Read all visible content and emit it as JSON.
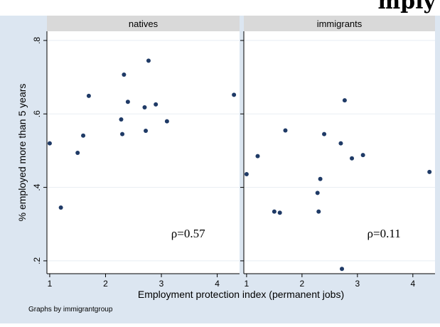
{
  "chart_data": {
    "type": "scatter",
    "title_fragment": "mply",
    "ylabel": "% employed more than 5 years",
    "xlabel": "Employment protection index (permanent jobs)",
    "note": "Graphs by immigrantgroup",
    "xlim": [
      0.95,
      4.4
    ],
    "ylim": [
      0.165,
      0.825
    ],
    "x_ticks": [
      1,
      2,
      3,
      4
    ],
    "y_ticks": [
      0.2,
      0.4,
      0.6,
      0.8
    ],
    "y_tick_labels": [
      ".2",
      ".4",
      ".6",
      ".8"
    ],
    "grid": true,
    "colors": {
      "background": "#dce6f1",
      "plot": "#ffffff",
      "panel_header": "#d9d9d9",
      "marker": "#1f3a66",
      "grid": "#e8edf3"
    },
    "panels": [
      {
        "name": "natives",
        "annotation": "ρ=0.57",
        "points": [
          {
            "x": 1.0,
            "y": 0.52
          },
          {
            "x": 1.2,
            "y": 0.345
          },
          {
            "x": 1.5,
            "y": 0.494
          },
          {
            "x": 1.6,
            "y": 0.541
          },
          {
            "x": 1.7,
            "y": 0.649
          },
          {
            "x": 2.28,
            "y": 0.585
          },
          {
            "x": 2.3,
            "y": 0.545
          },
          {
            "x": 2.33,
            "y": 0.707
          },
          {
            "x": 2.4,
            "y": 0.633
          },
          {
            "x": 2.7,
            "y": 0.618
          },
          {
            "x": 2.72,
            "y": 0.554
          },
          {
            "x": 2.77,
            "y": 0.745
          },
          {
            "x": 2.9,
            "y": 0.626
          },
          {
            "x": 3.1,
            "y": 0.58
          },
          {
            "x": 4.3,
            "y": 0.652
          }
        ]
      },
      {
        "name": "immigrants",
        "annotation": "ρ=0.11",
        "points": [
          {
            "x": 1.0,
            "y": 0.436
          },
          {
            "x": 1.2,
            "y": 0.485
          },
          {
            "x": 1.5,
            "y": 0.334
          },
          {
            "x": 1.6,
            "y": 0.331
          },
          {
            "x": 1.7,
            "y": 0.555
          },
          {
            "x": 2.28,
            "y": 0.385
          },
          {
            "x": 2.3,
            "y": 0.334
          },
          {
            "x": 2.33,
            "y": 0.423
          },
          {
            "x": 2.4,
            "y": 0.545
          },
          {
            "x": 2.7,
            "y": 0.52
          },
          {
            "x": 2.72,
            "y": 0.178
          },
          {
            "x": 2.77,
            "y": 0.637
          },
          {
            "x": 2.9,
            "y": 0.479
          },
          {
            "x": 3.1,
            "y": 0.488
          },
          {
            "x": 4.3,
            "y": 0.442
          }
        ]
      }
    ]
  }
}
